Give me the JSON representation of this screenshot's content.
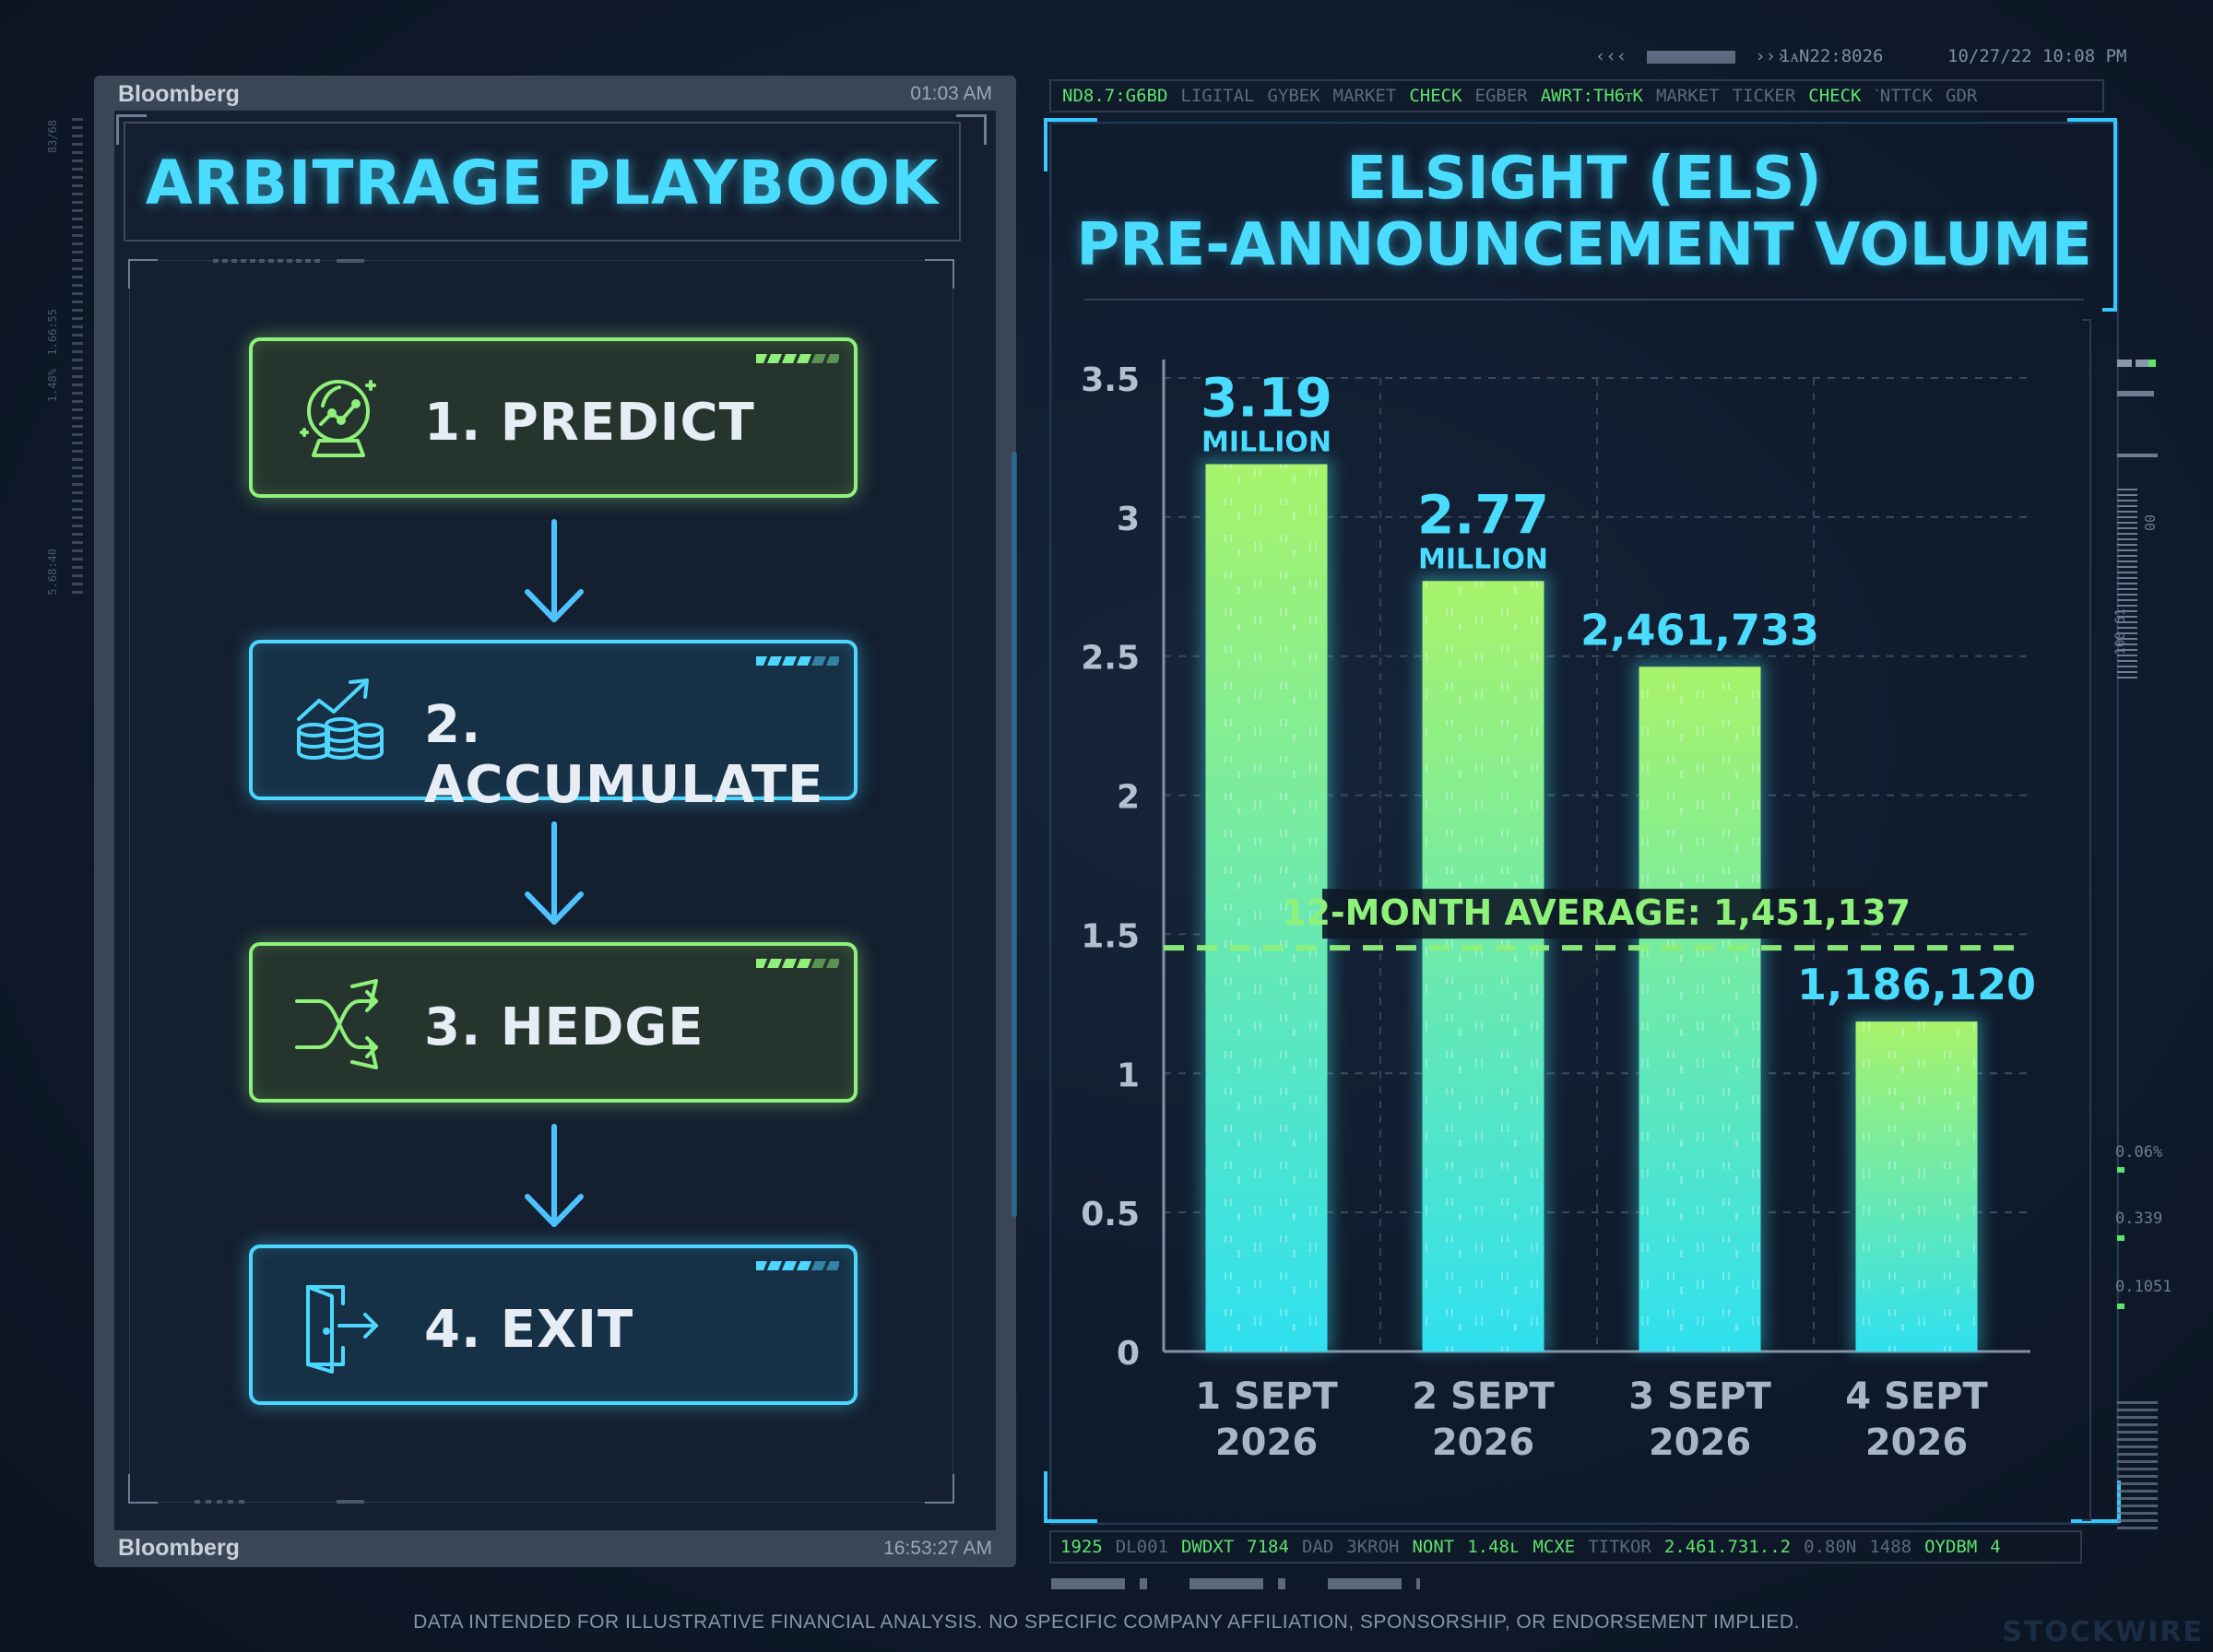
{
  "header": {
    "nav_left": "‹‹‹",
    "nav_right": "›››",
    "code": "1ᴀN22:8026",
    "datetime": "10/27/22 10:08 PM"
  },
  "left_panel": {
    "brand_top": "Bloomberg",
    "time_top": "01:03 AM",
    "brand_bottom": "Bloomberg",
    "time_bottom": "16:53:27 AM",
    "title": "ARBITRAGE PLAYBOOK",
    "steps": [
      {
        "label": "1. PREDICT",
        "icon": "crystal-ball-chart-icon",
        "color": "#8ff07a"
      },
      {
        "label": "2. ACCUMULATE",
        "icon": "coins-growth-icon",
        "color": "#4dd7ff"
      },
      {
        "label": "3. HEDGE",
        "icon": "shuffle-arrows-icon",
        "color": "#8ff07a"
      },
      {
        "label": "4. EXIT",
        "icon": "exit-door-icon",
        "color": "#4dd7ff"
      }
    ]
  },
  "ticker_top": [
    {
      "t": "ND8.7:G6BD",
      "c": "g"
    },
    {
      "t": "LIGITAL",
      "c": "d"
    },
    {
      "t": "GYBEK",
      "c": "d"
    },
    {
      "t": "MARKET",
      "c": "d"
    },
    {
      "t": "CHECK",
      "c": "g"
    },
    {
      "t": "EGBER",
      "c": "d"
    },
    {
      "t": "AWRT:TH6ᴛK",
      "c": "g"
    },
    {
      "t": "MARKET",
      "c": "d"
    },
    {
      "t": "TICKER",
      "c": "d"
    },
    {
      "t": "CHECK",
      "c": "g"
    },
    {
      "t": "ˋNTTCK",
      "c": "d"
    },
    {
      "t": "GDR",
      "c": "d"
    }
  ],
  "ticker_bottom": [
    {
      "t": "1925",
      "c": "g"
    },
    {
      "t": "DL001",
      "c": "d"
    },
    {
      "t": "DWDXT",
      "c": "g"
    },
    {
      "t": "7184",
      "c": "g"
    },
    {
      "t": "DAD",
      "c": "d"
    },
    {
      "t": "3KROH",
      "c": "d"
    },
    {
      "t": "NONT",
      "c": "g"
    },
    {
      "t": "1.48ʟ",
      "c": "g"
    },
    {
      "t": "MCXE",
      "c": "g"
    },
    {
      "t": "TITKOR",
      "c": "d"
    },
    {
      "t": "2.461.731..2",
      "c": "g"
    },
    {
      "t": "0.80N",
      "c": "d"
    },
    {
      "t": "1488",
      "c": "d"
    },
    {
      "t": "OYDBM",
      "c": "g"
    },
    {
      "t": "4",
      "c": "g"
    }
  ],
  "side_readouts": {
    "left": [
      "83/68",
      "1.66:55",
      "1.48%",
      "5.68:40"
    ],
    "right": [
      "0.06%",
      "0.339",
      "0.1051",
      "00",
      "100.61"
    ]
  },
  "chart_data": {
    "type": "bar",
    "title_lines": [
      "ELSIGHT (ELS)",
      "PRE-ANNOUNCEMENT VOLUME"
    ],
    "categories": [
      "1 SEPT 2026",
      "2 SEPT 2026",
      "3 SEPT 2026",
      "4 SEPT 2026"
    ],
    "category_lines": [
      [
        "1 SEPT",
        "2026"
      ],
      [
        "2 SEPT",
        "2026"
      ],
      [
        "3 SEPT",
        "2026"
      ],
      [
        "4 SEPT",
        "2026"
      ]
    ],
    "values": [
      3.19,
      2.77,
      2.461733,
      1.18612
    ],
    "value_labels": [
      {
        "main": "3.19",
        "sub": "MILLION"
      },
      {
        "main": "2.77",
        "sub": "MILLION"
      },
      {
        "main": "2,461,733",
        "sub": ""
      },
      {
        "main": "1,186,120",
        "sub": ""
      }
    ],
    "y_ticks": [
      "0",
      "0.5",
      "1",
      "1.5",
      "2",
      "2.5",
      "3",
      "3.5"
    ],
    "y_tick_values": [
      0,
      0.5,
      1,
      1.5,
      2,
      2.5,
      3,
      3.5
    ],
    "ylim": [
      0,
      3.5
    ],
    "reference_line": {
      "value": 1.451137,
      "label": "12-MONTH AVERAGE: 1,451,137",
      "color": "#8ff07a"
    },
    "bar_gradient": [
      "#a8f36a",
      "#2fe0f0"
    ],
    "grid": true,
    "xlabel": "",
    "ylabel": ""
  },
  "footer": {
    "disclaimer": "DATA INTENDED FOR ILLUSTRATIVE FINANCIAL ANALYSIS. NO SPECIFIC COMPANY AFFILIATION, SPONSORSHIP, OR ENDORSEMENT IMPLIED.",
    "brand": "STOCKWIRE"
  }
}
